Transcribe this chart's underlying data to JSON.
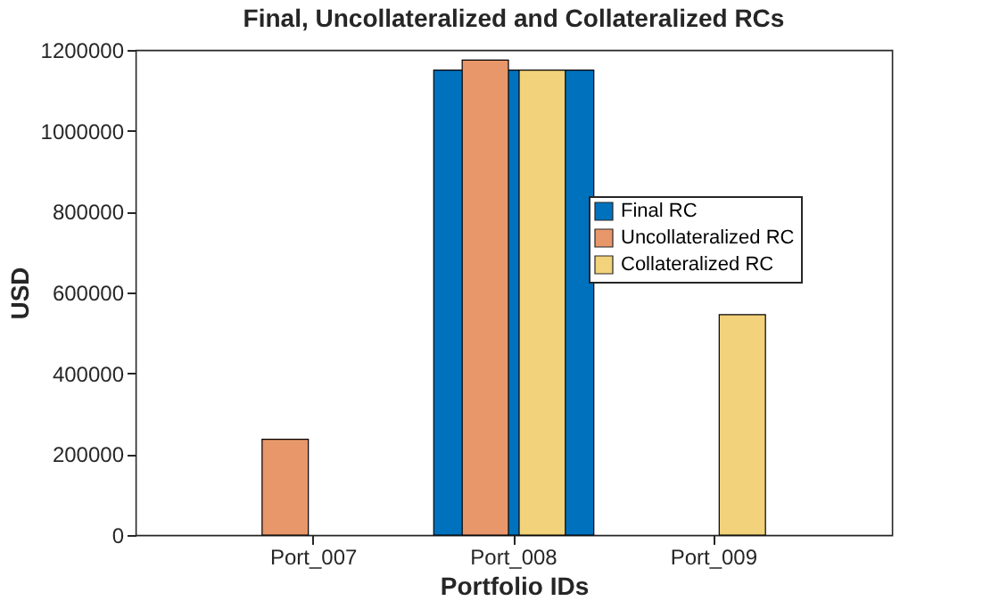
{
  "chart_data": {
    "type": "bar",
    "title": "Final, Uncollateralized and Collateralized RCs",
    "xlabel": "Portfolio IDs",
    "ylabel": "USD",
    "categories": [
      "Port_007",
      "Port_008",
      "Port_009"
    ],
    "series": [
      {
        "name": "Final RC",
        "color": "#0072bd",
        "values": [
          null,
          1150000,
          null
        ]
      },
      {
        "name": "Uncollateralized RC",
        "color": "#e8976a",
        "values": [
          237000,
          1175000,
          null
        ]
      },
      {
        "name": "Collateralized RC",
        "color": "#f2d27a",
        "values": [
          null,
          1150000,
          545000
        ]
      }
    ],
    "ylim": [
      0,
      1200000
    ],
    "yticks": [
      0,
      200000,
      400000,
      600000,
      800000,
      1000000,
      1200000
    ],
    "grid": false,
    "legend": "right"
  }
}
